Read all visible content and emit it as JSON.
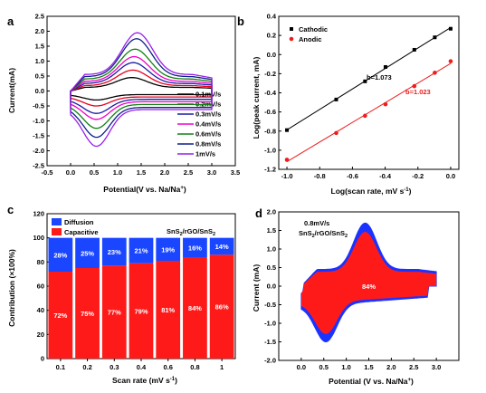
{
  "chart_data": [
    {
      "panel": "a",
      "type": "line",
      "xlabel": "Potential(V vs. Na/Na",
      "xlabel_sup": "+",
      "xlabel_end": ")",
      "ylabel": "Current(mA)",
      "xlim": [
        -0.5,
        3.5
      ],
      "ylim": [
        -2.5,
        2.5
      ],
      "xticks": [
        "-0.5",
        "0.0",
        "0.5",
        "1.0",
        "1.5",
        "2.0",
        "2.5",
        "3.0",
        "3.5"
      ],
      "yticks": [
        "-2.5",
        "-2.0",
        "-1.5",
        "-1.0",
        "-0.5",
        "0.0",
        "0.5",
        "1.0",
        "1.5",
        "2.0",
        "2.5"
      ],
      "series": [
        {
          "name": "0.1mV/s",
          "color": "#000000",
          "anodic_peak": [
            1.3,
            0.45
          ],
          "cathodic_peak": [
            0.55,
            -0.3
          ],
          "upper_base": 0.12,
          "lower_base": -0.12
        },
        {
          "name": "0.2mV/s",
          "color": "#e8001c",
          "anodic_peak": [
            1.32,
            0.7
          ],
          "cathodic_peak": [
            0.55,
            -0.5
          ],
          "upper_base": 0.18,
          "lower_base": -0.2
        },
        {
          "name": "0.3mV/s",
          "color": "#1a1aa6",
          "anodic_peak": [
            1.33,
            0.95
          ],
          "cathodic_peak": [
            0.55,
            -0.75
          ],
          "upper_base": 0.25,
          "lower_base": -0.28
        },
        {
          "name": "0.4mV/s",
          "color": "#f000c8",
          "anodic_peak": [
            1.35,
            1.15
          ],
          "cathodic_peak": [
            0.55,
            -0.95
          ],
          "upper_base": 0.32,
          "lower_base": -0.36
        },
        {
          "name": "0.6mV/s",
          "color": "#108010",
          "anodic_peak": [
            1.37,
            1.4
          ],
          "cathodic_peak": [
            0.55,
            -1.25
          ],
          "upper_base": 0.4,
          "lower_base": -0.45
        },
        {
          "name": "0.8mV/s",
          "color": "#0c1f8a",
          "anodic_peak": [
            1.4,
            1.75
          ],
          "cathodic_peak": [
            0.55,
            -1.55
          ],
          "upper_base": 0.48,
          "lower_base": -0.55
        },
        {
          "name": "1mV/s",
          "color": "#9b1fe8",
          "anodic_peak": [
            1.42,
            1.95
          ],
          "cathodic_peak": [
            0.55,
            -1.85
          ],
          "upper_base": 0.55,
          "lower_base": -0.62
        }
      ]
    },
    {
      "panel": "b",
      "type": "scatter",
      "xlabel": "Log(scan rate, mV s",
      "xlabel_sup": "-1",
      "xlabel_end": ")",
      "ylabel": "Log(peak current, mA)",
      "xlim": [
        -1.0,
        0.0
      ],
      "ylim": [
        -1.2,
        0.4
      ],
      "xticks": [
        "-1.0",
        "-0.8",
        "-0.6",
        "-0.4",
        "-0.2",
        "0.0"
      ],
      "yticks": [
        "-1.2",
        "-1.0",
        "-0.8",
        "-0.6",
        "-0.4",
        "-0.2",
        "0.0",
        "0.2",
        "0.4"
      ],
      "x": [
        -1.0,
        -0.699,
        -0.523,
        -0.398,
        -0.222,
        -0.097,
        0.0
      ],
      "series": [
        {
          "name": "Cathodic",
          "color": "#000000",
          "values": [
            -0.79,
            -0.47,
            -0.28,
            -0.13,
            0.05,
            0.18,
            0.27
          ],
          "fit_label": "b=1.073"
        },
        {
          "name": "Anodic",
          "color": "#ee1c1c",
          "values": [
            -1.1,
            -0.82,
            -0.64,
            -0.52,
            -0.33,
            -0.19,
            -0.07
          ],
          "fit_label": "b=1.023"
        }
      ],
      "legend": "top-left"
    },
    {
      "panel": "c",
      "type": "bar",
      "stacked": true,
      "xlabel": "Scan rate (mV s",
      "xlabel_sup": "-1",
      "xlabel_end": ")",
      "ylabel": "Contribution (×100%)",
      "categories": [
        "0.1",
        "0.2",
        "0.3",
        "0.4",
        "0.6",
        "0.8",
        "1"
      ],
      "ylim": [
        0,
        120
      ],
      "yticks": [
        "0",
        "20",
        "40",
        "60",
        "80",
        "100",
        "120"
      ],
      "series": [
        {
          "name": "Capacitive",
          "color": "#ff1a1a",
          "values": [
            72,
            75,
            77,
            79,
            81,
            84,
            86
          ],
          "labels": [
            "72%",
            "75%",
            "77%",
            "79%",
            "81%",
            "84%",
            "86%"
          ]
        },
        {
          "name": "Diffusion",
          "color": "#1a46ff",
          "values": [
            28,
            25,
            23,
            21,
            19,
            16,
            14
          ],
          "labels": [
            "28%",
            "25%",
            "23%",
            "21%",
            "19%",
            "16%",
            "14%"
          ]
        }
      ],
      "annotation": "SnS",
      "annotation_sub": "2",
      "annotation_mid": "/rGO/SnS",
      "annotation_sub2": "2",
      "legend": "top-left"
    },
    {
      "panel": "d",
      "type": "area",
      "xlabel": "Potential (V vs. Na/Na",
      "xlabel_sup": "+",
      "xlabel_end": ")",
      "ylabel": "Current (mA)",
      "xlim": [
        -0.5,
        3.5
      ],
      "ylim": [
        -2.0,
        2.0
      ],
      "xticks": [
        "0.0",
        "0.5",
        "1.0",
        "1.5",
        "2.0",
        "2.5",
        "3.0"
      ],
      "yticks": [
        "-2.0",
        "-1.5",
        "-1.0",
        "-0.5",
        "0.0",
        "0.5",
        "1.0",
        "1.5",
        "2.0"
      ],
      "annotation_line1": "0.8mV/s",
      "annotation_line2": "SnS",
      "annotation_sub": "2",
      "annotation_mid": "/rGO/SnS",
      "annotation_sub2": "2",
      "percent_label": "84%",
      "total_color": "#1a33ff",
      "capacitive_color": "#ff1a1a"
    }
  ]
}
